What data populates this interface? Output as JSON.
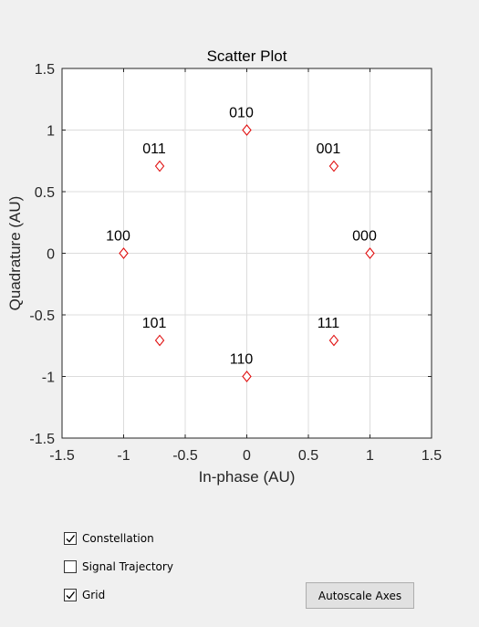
{
  "chart_data": {
    "type": "scatter",
    "title": "Scatter Plot",
    "xlabel": "In-phase (AU)",
    "ylabel": "Quadrature (AU)",
    "xlim": [
      -1.5,
      1.5
    ],
    "ylim": [
      -1.5,
      1.5
    ],
    "xticks": [
      -1.5,
      -1,
      -0.5,
      0,
      0.5,
      1,
      1.5
    ],
    "yticks": [
      -1.5,
      -1,
      -0.5,
      0,
      0.5,
      1,
      1.5
    ],
    "xtick_labels": [
      "-1.5",
      "-1",
      "-0.5",
      "0",
      "0.5",
      "1",
      "1.5"
    ],
    "ytick_labels": [
      "-1.5",
      "-1",
      "-0.5",
      "0",
      "0.5",
      "1",
      "1.5"
    ],
    "grid": true,
    "marker": "diamond",
    "marker_color": "#e01010",
    "points": [
      {
        "x": 1,
        "y": 0,
        "label": "000"
      },
      {
        "x": 0.7071,
        "y": 0.7071,
        "label": "001"
      },
      {
        "x": 0,
        "y": 1,
        "label": "010"
      },
      {
        "x": -0.7071,
        "y": 0.7071,
        "label": "011"
      },
      {
        "x": -1,
        "y": 0,
        "label": "100"
      },
      {
        "x": -0.7071,
        "y": -0.7071,
        "label": "101"
      },
      {
        "x": 0,
        "y": -1,
        "label": "110"
      },
      {
        "x": 0.7071,
        "y": -0.7071,
        "label": "111"
      }
    ]
  },
  "controls": {
    "checkboxes": [
      {
        "label": "Constellation",
        "checked": true
      },
      {
        "label": "Signal Trajectory",
        "checked": false
      },
      {
        "label": "Grid",
        "checked": true
      }
    ],
    "autoscale_label": "Autoscale Axes"
  }
}
